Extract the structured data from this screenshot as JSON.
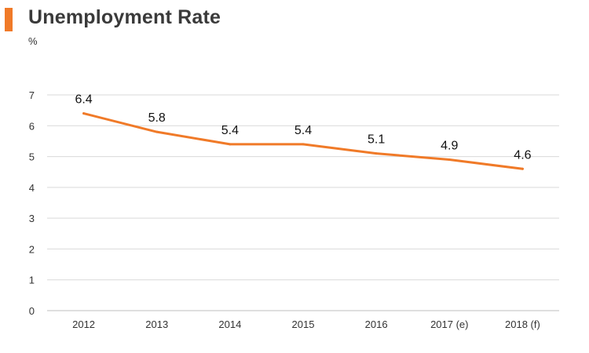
{
  "header": {
    "title": "Unemployment Rate",
    "unit": "%"
  },
  "colors": {
    "accent": "#f07a28",
    "line": "#f07a28",
    "grid": "#d9d9d9",
    "axis": "#bfbfbf"
  },
  "chart_data": {
    "type": "line",
    "title": "Unemployment Rate",
    "xlabel": "",
    "ylabel": "%",
    "categories": [
      "2012",
      "2013",
      "2014",
      "2015",
      "2016",
      "2017 (e)",
      "2018 (f)"
    ],
    "series": [
      {
        "values": [
          6.4,
          5.8,
          5.4,
          5.4,
          5.1,
          4.9,
          4.6
        ],
        "data_labels": [
          "6.4",
          "5.8",
          "5.4",
          "5.4",
          "5.1",
          "4.9",
          "4.6"
        ]
      }
    ],
    "ylim": [
      0,
      7
    ],
    "yticks": [
      0,
      1,
      2,
      3,
      4,
      5,
      6,
      7
    ],
    "grid": true,
    "legend": "none"
  }
}
